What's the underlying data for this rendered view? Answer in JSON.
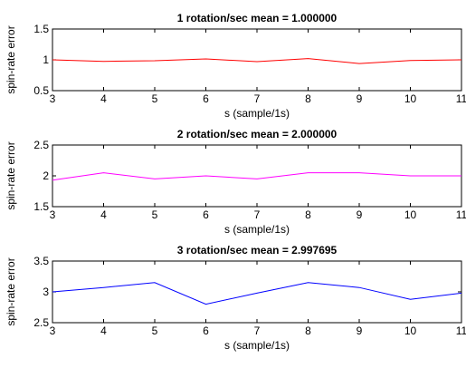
{
  "chart_data": [
    {
      "type": "line",
      "title": "1 rotation/sec     mean = 1.000000",
      "xlabel": "s (sample/1s)",
      "ylabel": "spin-rate error",
      "xlim": [
        3,
        11
      ],
      "ylim": [
        0.5,
        1.5
      ],
      "xticks": [
        3,
        4,
        5,
        6,
        7,
        8,
        9,
        10,
        11
      ],
      "yticks": [
        0.5,
        1,
        1.5
      ],
      "ytick_labels": [
        "0.5",
        "1",
        "1.5"
      ],
      "grid": false,
      "color": "#ff0000",
      "x": [
        3,
        4,
        5,
        6,
        7,
        8,
        9,
        10,
        11
      ],
      "values": [
        1.0,
        0.975,
        0.985,
        1.015,
        0.97,
        1.02,
        0.94,
        0.99,
        1.0
      ]
    },
    {
      "type": "line",
      "title": "2 rotation/sec     mean = 2.000000",
      "xlabel": "s (sample/1s)",
      "ylabel": "spin-rate error",
      "xlim": [
        3,
        11
      ],
      "ylim": [
        1.5,
        2.5
      ],
      "xticks": [
        3,
        4,
        5,
        6,
        7,
        8,
        9,
        10,
        11
      ],
      "yticks": [
        1.5,
        2,
        2.5
      ],
      "ytick_labels": [
        "1.5",
        "2",
        "2.5"
      ],
      "grid": false,
      "color": "#ff00ff",
      "x": [
        3,
        4,
        5,
        6,
        7,
        8,
        9,
        10,
        11
      ],
      "values": [
        1.93,
        2.05,
        1.95,
        2.0,
        1.95,
        2.05,
        2.05,
        2.0,
        2.0
      ]
    },
    {
      "type": "line",
      "title": "3 rotation/sec     mean = 2.997695",
      "xlabel": "s (sample/1s)",
      "ylabel": "spin-rate error",
      "xlim": [
        3,
        11
      ],
      "ylim": [
        2.5,
        3.5
      ],
      "xticks": [
        3,
        4,
        5,
        6,
        7,
        8,
        9,
        10,
        11
      ],
      "yticks": [
        2.5,
        3,
        3.5
      ],
      "ytick_labels": [
        "2.5",
        "3",
        "3.5"
      ],
      "grid": false,
      "color": "#0000ff",
      "x": [
        3,
        4,
        5,
        6,
        7,
        8,
        9,
        10,
        11
      ],
      "values": [
        3.0,
        3.07,
        3.15,
        2.8,
        2.98,
        3.15,
        3.07,
        2.88,
        2.98
      ]
    }
  ]
}
